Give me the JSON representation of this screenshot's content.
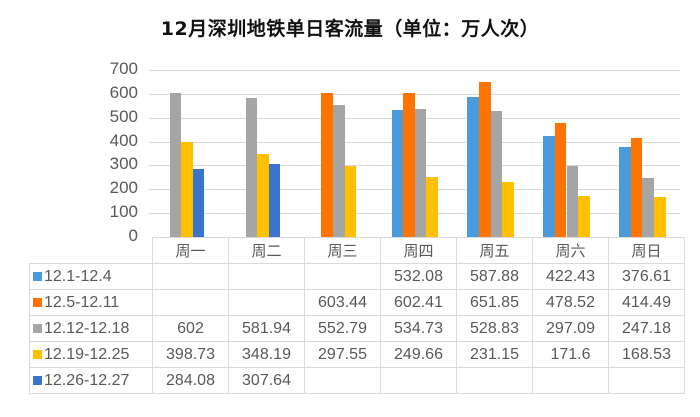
{
  "chart_data": {
    "type": "bar",
    "title": "12月深圳地铁单日客流量（单位：万人次）",
    "xlabel": "",
    "ylabel": "",
    "ylim": [
      0,
      700
    ],
    "yticks": [
      0,
      100,
      200,
      300,
      400,
      500,
      600,
      700
    ],
    "grid": true,
    "legend_position": "data-table",
    "categories": [
      "周一",
      "周二",
      "周三",
      "周四",
      "周五",
      "周六",
      "周日"
    ],
    "series": [
      {
        "name": "12.1-12.4",
        "color": "#4A9BDB",
        "values": [
          null,
          null,
          null,
          532.08,
          587.88,
          422.43,
          376.61
        ]
      },
      {
        "name": "12.5-12.11",
        "color": "#FF7300",
        "values": [
          null,
          null,
          603.44,
          602.41,
          651.85,
          478.52,
          414.49
        ]
      },
      {
        "name": "12.12-12.18",
        "color": "#A5A5A5",
        "values": [
          602,
          581.94,
          552.79,
          534.73,
          528.83,
          297.09,
          247.18
        ]
      },
      {
        "name": "12.19-12.25",
        "color": "#FFC000",
        "values": [
          398.73,
          348.19,
          297.55,
          249.66,
          231.15,
          171.6,
          168.53
        ]
      },
      {
        "name": "12.26-12.27",
        "color": "#3A73CC",
        "values": [
          284.08,
          307.64,
          null,
          null,
          null,
          null,
          null
        ]
      }
    ]
  },
  "table": {
    "display": [
      [
        "",
        "",
        "",
        "532.08",
        "587.88",
        "422.43",
        "376.61"
      ],
      [
        "",
        "",
        "603.44",
        "602.41",
        "651.85",
        "478.52",
        "414.49"
      ],
      [
        "602",
        "581.94",
        "552.79",
        "534.73",
        "528.83",
        "297.09",
        "247.18"
      ],
      [
        "398.73",
        "348.19",
        "297.55",
        "249.66",
        "231.15",
        "171.6",
        "168.53"
      ],
      [
        "284.08",
        "307.64",
        "",
        "",
        "",
        "",
        ""
      ]
    ]
  }
}
